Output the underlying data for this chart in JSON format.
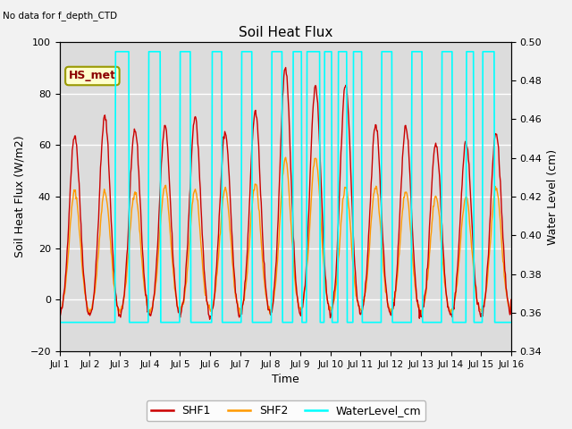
{
  "title": "Soil Heat Flux",
  "no_data_text": "No data for f_depth_CTD",
  "hs_met_label": "HS_met",
  "xlabel": "Time",
  "ylabel_left": "Soil Heat Flux (W/m2)",
  "ylabel_right": "Water Level (cm)",
  "ylim_left": [
    -20,
    100
  ],
  "ylim_right": [
    0.34,
    0.5
  ],
  "yticks_left": [
    -20,
    0,
    20,
    40,
    60,
    80,
    100
  ],
  "yticks_right": [
    0.34,
    0.36,
    0.38,
    0.4,
    0.42,
    0.44,
    0.46,
    0.48,
    0.5
  ],
  "xtick_labels": [
    "Jul 1",
    "Jul 2",
    "Jul 3",
    "Jul 4",
    "Jul 5",
    "Jul 6",
    "Jul 7",
    "Jul 8",
    "Jul 9",
    "Jul 10",
    "Jul 11",
    "Jul 12",
    "Jul 13",
    "Jul 14",
    "Jul 15",
    "Jul 16"
  ],
  "background_color": "#dcdcdc",
  "grid_color": "#ffffff",
  "shf1_color": "#cc0000",
  "shf2_color": "#ff9900",
  "water_color": "#00ffff",
  "legend_shf1": "SHF1",
  "legend_shf2": "SHF2",
  "legend_water": "WaterLevel_cm",
  "shf1_peaks": [
    64,
    71,
    66,
    67,
    71,
    65,
    73,
    90,
    83,
    83,
    68,
    67,
    61,
    61,
    65
  ],
  "shf2_peaks": [
    42,
    42,
    42,
    44,
    43,
    43,
    45,
    55,
    55,
    44,
    44,
    42,
    40,
    40,
    43
  ],
  "water_val_low": 0.355,
  "water_val_high": 0.495,
  "water_segments": [
    [
      0,
      1.85,
      false
    ],
    [
      1.85,
      2.3,
      true
    ],
    [
      2.3,
      2.95,
      false
    ],
    [
      2.95,
      3.35,
      true
    ],
    [
      3.35,
      4.0,
      false
    ],
    [
      4.0,
      4.35,
      true
    ],
    [
      4.35,
      5.05,
      false
    ],
    [
      5.05,
      5.4,
      true
    ],
    [
      5.4,
      6.05,
      false
    ],
    [
      6.05,
      6.4,
      true
    ],
    [
      6.4,
      7.05,
      false
    ],
    [
      7.05,
      7.4,
      true
    ],
    [
      7.4,
      7.75,
      false
    ],
    [
      7.75,
      8.05,
      true
    ],
    [
      8.05,
      8.2,
      false
    ],
    [
      8.2,
      8.65,
      true
    ],
    [
      8.65,
      8.8,
      false
    ],
    [
      8.8,
      9.05,
      true
    ],
    [
      9.05,
      9.25,
      false
    ],
    [
      9.25,
      9.55,
      true
    ],
    [
      9.55,
      9.75,
      false
    ],
    [
      9.75,
      10.05,
      true
    ],
    [
      10.05,
      10.7,
      false
    ],
    [
      10.7,
      11.05,
      true
    ],
    [
      11.05,
      11.7,
      false
    ],
    [
      11.7,
      12.05,
      true
    ],
    [
      12.05,
      12.7,
      false
    ],
    [
      12.7,
      13.05,
      true
    ],
    [
      13.05,
      13.5,
      false
    ],
    [
      13.5,
      13.75,
      true
    ],
    [
      13.75,
      14.05,
      false
    ],
    [
      14.05,
      14.45,
      true
    ],
    [
      14.45,
      15.0,
      false
    ]
  ]
}
